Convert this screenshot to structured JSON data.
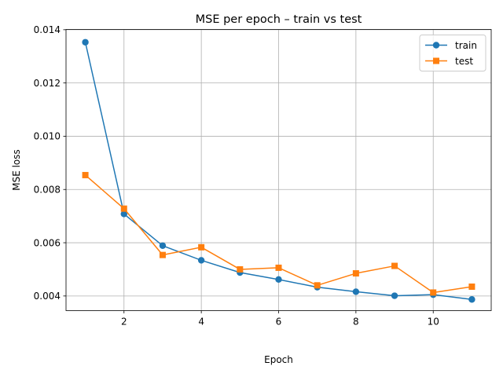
{
  "chart_data": {
    "type": "line",
    "title": "MSE per epoch – train vs test",
    "xlabel": "Epoch",
    "ylabel": "MSE loss",
    "x": [
      1,
      2,
      3,
      4,
      5,
      6,
      7,
      8,
      9,
      10,
      11
    ],
    "xlim": [
      0.5,
      11.5
    ],
    "ylim": [
      0.00345,
      0.01401
    ],
    "xticks": [
      2,
      4,
      6,
      8,
      10
    ],
    "xtick_labels": [
      "2",
      "4",
      "6",
      "8",
      "10"
    ],
    "yticks": [
      0.004,
      0.006,
      0.008,
      0.01,
      0.012,
      0.014
    ],
    "ytick_labels": [
      "0.004",
      "0.006",
      "0.008",
      "0.010",
      "0.012",
      "0.014"
    ],
    "grid": true,
    "legend_position": "top-right",
    "series": [
      {
        "name": "train",
        "color": "#1f77b4",
        "marker": "circle",
        "values": [
          0.01353,
          0.00708,
          0.00589,
          0.00534,
          0.00488,
          0.00462,
          0.00433,
          0.00416,
          0.00401,
          0.00405,
          0.00387
        ]
      },
      {
        "name": "test",
        "color": "#ff7f0e",
        "marker": "square",
        "values": [
          0.00854,
          0.00728,
          0.00554,
          0.00583,
          0.005,
          0.00506,
          0.0044,
          0.00485,
          0.00513,
          0.00413,
          0.00435
        ]
      }
    ]
  }
}
